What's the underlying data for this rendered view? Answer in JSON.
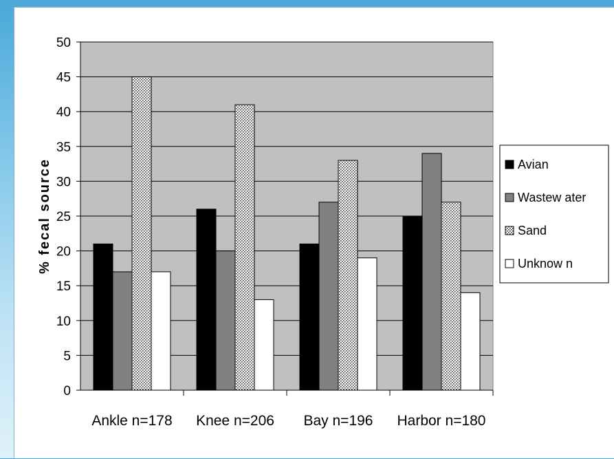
{
  "chart_data": {
    "type": "bar",
    "title": "",
    "xlabel": "",
    "ylabel": "% fecal source",
    "ylim": [
      0,
      50
    ],
    "yticks": [
      0,
      5,
      10,
      15,
      20,
      25,
      30,
      35,
      40,
      45,
      50
    ],
    "grid": true,
    "legend_position": "right",
    "categories": [
      "Ankle n=178",
      "Knee n=206",
      "Bay n=196",
      "Harbor n=180"
    ],
    "series": [
      {
        "name": "Avian",
        "values": [
          21,
          26,
          21,
          25
        ],
        "fill": "#000000",
        "pattern": "solid"
      },
      {
        "name": "Wastew ater",
        "values": [
          17,
          20,
          27,
          34
        ],
        "fill": "#808080",
        "pattern": "solid"
      },
      {
        "name": "Sand",
        "values": [
          45,
          41,
          33,
          27
        ],
        "fill": "#ffffff",
        "pattern": "dots"
      },
      {
        "name": "Unknow n",
        "values": [
          17,
          13,
          19,
          14
        ],
        "fill": "#ffffff",
        "pattern": "solid"
      }
    ],
    "colors": {
      "plot_background": "#c0c0c0",
      "gridline": "#000000"
    }
  }
}
